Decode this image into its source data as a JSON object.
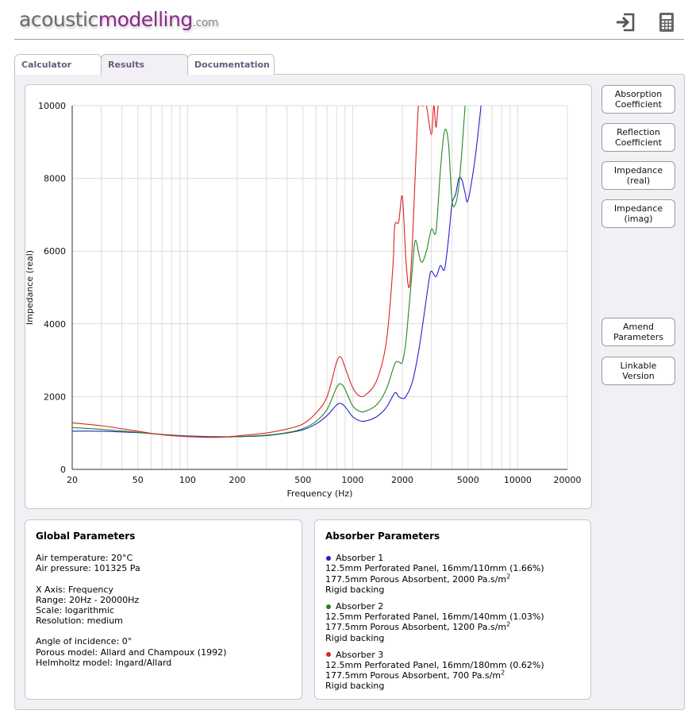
{
  "header": {
    "logo": {
      "part1": "acoustic",
      "part2": "modelling",
      "part3": ".com"
    },
    "icons": [
      "sign-in-icon",
      "calculator-icon"
    ]
  },
  "tabs": [
    {
      "label": "Calculator",
      "active": false
    },
    {
      "label": "Results",
      "active": true
    },
    {
      "label": "Documentation",
      "active": false
    }
  ],
  "sidebar": {
    "buttons": [
      {
        "label1": "Absorption",
        "label2": "Coefficient"
      },
      {
        "label1": "Reflection",
        "label2": "Coefficient"
      },
      {
        "label1": "Impedance",
        "label2": "(real)"
      },
      {
        "label1": "Impedance",
        "label2": "(imag)"
      },
      {
        "label1": "Amend",
        "label2": "Parameters"
      },
      {
        "label1": "Linkable",
        "label2": "Version"
      }
    ]
  },
  "chart_data": {
    "type": "line",
    "xlabel": "Frequency (Hz)",
    "ylabel": "Impedance (real)",
    "xscale": "log",
    "xlim": [
      20,
      20000
    ],
    "ylim": [
      0,
      10000
    ],
    "x_ticks": [
      20,
      50,
      100,
      200,
      500,
      1000,
      2000,
      5000,
      10000,
      20000
    ],
    "y_ticks": [
      0,
      2000,
      4000,
      6000,
      8000,
      10000
    ],
    "grid": true,
    "series": [
      {
        "name": "Absorber 1",
        "color": "#2222cc",
        "x": [
          20,
          30,
          50,
          70,
          100,
          150,
          200,
          300,
          400,
          500,
          600,
          700,
          800,
          850,
          900,
          1000,
          1100,
          1200,
          1400,
          1600,
          1800,
          1900,
          2000,
          2100,
          2300,
          2500,
          2700,
          2900,
          3000,
          3200,
          3400,
          3600,
          3800,
          4000,
          4200,
          4400,
          4600,
          4800,
          5000,
          5500,
          6000
        ],
        "y": [
          1050,
          1050,
          1010,
          960,
          920,
          900,
          900,
          930,
          1000,
          1090,
          1250,
          1480,
          1770,
          1810,
          1720,
          1450,
          1340,
          1330,
          1450,
          1700,
          2100,
          2000,
          1950,
          2000,
          2400,
          3200,
          4200,
          5200,
          5450,
          5300,
          5600,
          5500,
          6300,
          7300,
          7550,
          8000,
          7950,
          7600,
          7400,
          8500,
          10000
        ]
      },
      {
        "name": "Absorber 2",
        "color": "#1f8a1f",
        "x": [
          20,
          30,
          50,
          70,
          100,
          150,
          200,
          300,
          400,
          500,
          600,
          700,
          800,
          850,
          900,
          1000,
          1100,
          1200,
          1400,
          1600,
          1800,
          1900,
          2000,
          2100,
          2200,
          2300,
          2400,
          2600,
          2800,
          3000,
          3200,
          3400,
          3600,
          3800,
          4000,
          4200,
          4400,
          4600,
          4800
        ],
        "y": [
          1150,
          1100,
          1020,
          960,
          910,
          890,
          900,
          940,
          1010,
          1120,
          1320,
          1650,
          2250,
          2350,
          2200,
          1750,
          1600,
          1600,
          1780,
          2200,
          2900,
          2950,
          2950,
          3500,
          4500,
          5500,
          6300,
          5700,
          6000,
          6600,
          6550,
          8200,
          9300,
          9000,
          7400,
          7300,
          7800,
          8800,
          10000
        ]
      },
      {
        "name": "Absorber 3",
        "color": "#dd2222",
        "x": [
          20,
          30,
          50,
          70,
          100,
          150,
          200,
          300,
          400,
          500,
          600,
          700,
          800,
          850,
          900,
          1000,
          1100,
          1200,
          1400,
          1600,
          1750,
          1800,
          1900,
          2000,
          2100,
          2200,
          2300,
          2500,
          2600,
          2700,
          2800,
          3000,
          3100,
          3200,
          3300,
          3400
        ],
        "y": [
          1280,
          1200,
          1050,
          950,
          900,
          880,
          920,
          1000,
          1110,
          1250,
          1550,
          2000,
          2950,
          3080,
          2800,
          2250,
          2020,
          2050,
          2450,
          3500,
          5500,
          6700,
          6800,
          7500,
          5800,
          5000,
          6200,
          10000,
          10000,
          10000,
          10000,
          9200,
          10000,
          9400,
          10000,
          10000
        ]
      }
    ]
  },
  "global_params": {
    "title": "Global Parameters",
    "air_temperature": "Air temperature: 20°C",
    "air_pressure": "Air pressure: 101325 Pa",
    "x_axis": "X Axis: Frequency",
    "range": "Range: 20Hz - 20000Hz",
    "scale": "Scale: logarithmic",
    "resolution": "Resolution: medium",
    "angle": "Angle of incidence: 0°",
    "porous_model": "Porous model: Allard and Champoux (1992)",
    "helmholtz_model": "Helmholtz model: Ingard/Allard"
  },
  "absorber_params": {
    "title": "Absorber Parameters",
    "absorbers": [
      {
        "name": "Absorber 1",
        "color": "#2222cc",
        "panel": "12.5mm Perforated Panel, 16mm/110mm (1.66%)",
        "porous": "177.5mm Porous Absorbent, 2000 Pa.s/m",
        "sup": "2",
        "backing": "Rigid backing"
      },
      {
        "name": "Absorber 2",
        "color": "#1f8a1f",
        "panel": "12.5mm Perforated Panel, 16mm/140mm (1.03%)",
        "porous": "177.5mm Porous Absorbent, 1200 Pa.s/m",
        "sup": "2",
        "backing": "Rigid backing"
      },
      {
        "name": "Absorber 3",
        "color": "#dd2222",
        "panel": "12.5mm Perforated Panel, 16mm/180mm (0.62%)",
        "porous": "177.5mm Porous Absorbent, 700 Pa.s/m",
        "sup": "2",
        "backing": "Rigid backing"
      }
    ]
  }
}
